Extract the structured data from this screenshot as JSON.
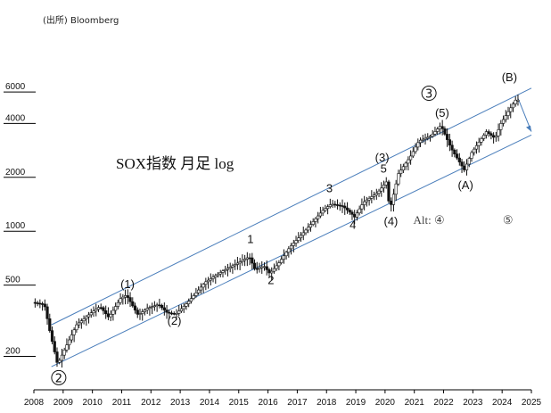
{
  "source": "(出所) Bloomberg",
  "chart_data": {
    "type": "ohlc",
    "title": "SOX指数 月足 log",
    "y_scale": "log",
    "ylim": [
      130,
      8000
    ],
    "yticks": [
      {
        "value": 200,
        "label": "200"
      },
      {
        "value": 500,
        "label": "500"
      },
      {
        "value": 1000,
        "label": "1000"
      },
      {
        "value": 2000,
        "label": "2000"
      },
      {
        "value": 4000,
        "label": "4000"
      },
      {
        "value": 6000,
        "label": "6000"
      }
    ],
    "xlim": [
      2008.0,
      2025.0
    ],
    "xticks": [
      "2008",
      "2009",
      "2010",
      "2011",
      "2012",
      "2013",
      "2014",
      "2015",
      "2016",
      "2017",
      "2018",
      "2019",
      "2020",
      "2021",
      "2022",
      "2023",
      "2024",
      "2025"
    ],
    "anchors": [
      [
        2008.0,
        400
      ],
      [
        2008.4,
        390
      ],
      [
        2008.6,
        270
      ],
      [
        2008.85,
        180
      ],
      [
        2009.1,
        220
      ],
      [
        2009.5,
        300
      ],
      [
        2010.0,
        350
      ],
      [
        2010.3,
        380
      ],
      [
        2010.6,
        330
      ],
      [
        2011.0,
        420
      ],
      [
        2011.2,
        440
      ],
      [
        2011.6,
        340
      ],
      [
        2011.9,
        370
      ],
      [
        2012.3,
        390
      ],
      [
        2012.6,
        350
      ],
      [
        2012.9,
        345
      ],
      [
        2013.3,
        400
      ],
      [
        2013.9,
        520
      ],
      [
        2014.5,
        600
      ],
      [
        2014.9,
        650
      ],
      [
        2015.4,
        720
      ],
      [
        2015.6,
        610
      ],
      [
        2015.9,
        640
      ],
      [
        2016.1,
        580
      ],
      [
        2016.4,
        660
      ],
      [
        2016.8,
        820
      ],
      [
        2017.3,
        1000
      ],
      [
        2017.9,
        1300
      ],
      [
        2018.2,
        1420
      ],
      [
        2018.6,
        1380
      ],
      [
        2018.9,
        1250
      ],
      [
        2019.0,
        1200
      ],
      [
        2019.3,
        1450
      ],
      [
        2019.8,
        1650
      ],
      [
        2020.1,
        1900
      ],
      [
        2020.2,
        1300
      ],
      [
        2020.5,
        2100
      ],
      [
        2020.9,
        2600
      ],
      [
        2021.2,
        3200
      ],
      [
        2021.6,
        3400
      ],
      [
        2021.95,
        3900
      ],
      [
        2022.3,
        2900
      ],
      [
        2022.75,
        2200
      ],
      [
        2023.0,
        2750
      ],
      [
        2023.5,
        3600
      ],
      [
        2023.8,
        3300
      ],
      [
        2024.0,
        4000
      ],
      [
        2024.3,
        4800
      ],
      [
        2024.5,
        5400
      ]
    ],
    "channel": {
      "upper": [
        [
          2008.6,
          300
        ],
        [
          2025.0,
          6300
        ]
      ],
      "lower": [
        [
          2008.6,
          175
        ],
        [
          2025.0,
          3450
        ]
      ]
    },
    "projection": [
      [
        2024.55,
        5500
      ],
      [
        2025.0,
        3600
      ]
    ],
    "annotations": [
      {
        "text": "(1)",
        "x": 2011.2,
        "y": 480,
        "style": "plain"
      },
      {
        "text": "(2)",
        "x": 2012.8,
        "y": 300,
        "style": "plain"
      },
      {
        "text": "1",
        "x": 2015.4,
        "y": 860,
        "style": "plain"
      },
      {
        "text": "2",
        "x": 2016.1,
        "y": 505,
        "style": "plain"
      },
      {
        "text": "3",
        "x": 2018.1,
        "y": 1650,
        "style": "plain"
      },
      {
        "text": "4",
        "x": 2018.9,
        "y": 1030,
        "style": "plain"
      },
      {
        "text": "(3)",
        "x": 2019.9,
        "y": 2450,
        "style": "plain"
      },
      {
        "text": "5",
        "x": 2019.95,
        "y": 2130,
        "style": "plain"
      },
      {
        "text": "(4)",
        "x": 2020.2,
        "y": 1080,
        "style": "plain"
      },
      {
        "text": "(5)",
        "x": 2021.95,
        "y": 4350,
        "style": "plain"
      },
      {
        "text": "(A)",
        "x": 2022.75,
        "y": 1720,
        "style": "plain"
      },
      {
        "text": "(B)",
        "x": 2024.25,
        "y": 6900,
        "style": "plain"
      },
      {
        "text": "Alt: ④",
        "x": 2021.5,
        "y": 1100,
        "style": "serif"
      },
      {
        "text": "⑤",
        "x": 2024.2,
        "y": 1100,
        "style": "serif"
      }
    ],
    "circled_labels": [
      {
        "text": "2",
        "x": 2008.85,
        "y": 152
      },
      {
        "text": "3",
        "x": 2021.5,
        "y": 5900
      }
    ]
  }
}
